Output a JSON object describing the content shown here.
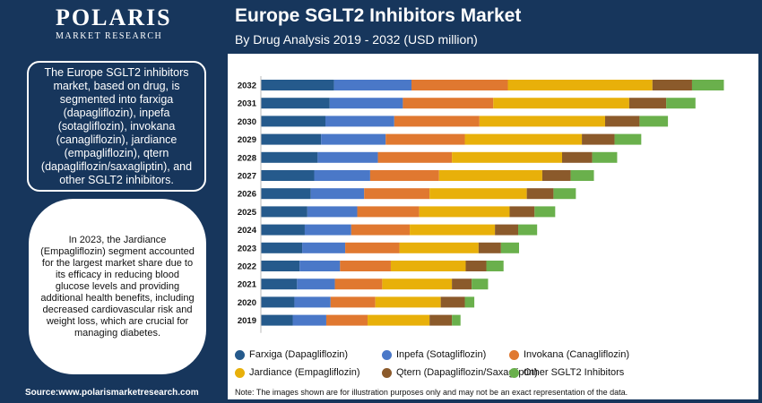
{
  "header": {
    "logo_brand": "POLARIS",
    "logo_sub": "MARKET RESEARCH",
    "title": "Europe SGLT2 Inhibitors Market",
    "subtitle": "By Drug Analysis 2019 - 2032 (USD million)"
  },
  "summary": "The Europe SGLT2 inhibitors market, based on drug, is segmented into farxiga (dapagliflozin), inpefa (sotagliflozin), invokana (canagliflozin), jardiance (empagliflozin), qtern (dapagliflozin/saxagliptin), and other SGLT2 inhibitors.",
  "highlight": "In 2023, the Jardiance (Empagliflozin) segment accounted for the largest market share due to its efficacy in reducing blood glucose levels and providing additional health benefits, including decreased cardiovascular risk and weight loss, which are crucial for managing diabetes.",
  "source": "Source:www.polarismarketresearch.com",
  "note": "Note: The images shown are for illustration purposes only and may not be an exact representation of the data.",
  "chart_data": {
    "type": "bar",
    "orientation": "horizontal",
    "stacked": true,
    "categories": [
      "2032",
      "2031",
      "2030",
      "2029",
      "2028",
      "2027",
      "2026",
      "2025",
      "2024",
      "2023",
      "2022",
      "2021",
      "2020",
      "2019"
    ],
    "series": [
      {
        "name": "Farxiga (Dapagliflozin)",
        "color": "#255a8c",
        "values": [
          85,
          80,
          75,
          70,
          66,
          62,
          58,
          54,
          51,
          48,
          45,
          42,
          39,
          37
        ]
      },
      {
        "name": "Inpefa (Sotagliflozin)",
        "color": "#4a78c8",
        "values": [
          90,
          85,
          80,
          75,
          70,
          65,
          62,
          58,
          54,
          50,
          47,
          44,
          42,
          39
        ]
      },
      {
        "name": "Invokana (Canagliflozin)",
        "color": "#e07830",
        "values": [
          112,
          105,
          99,
          92,
          86,
          80,
          76,
          72,
          68,
          63,
          59,
          55,
          52,
          48
        ]
      },
      {
        "name": "Jardiance (Empagliflozin)",
        "color": "#e8b00a",
        "values": [
          168,
          158,
          146,
          136,
          128,
          120,
          113,
          105,
          99,
          92,
          87,
          81,
          76,
          72
        ]
      },
      {
        "name": "Qtern (Dapagliflozin/Saxagliptin)",
        "color": "#8b5a2b",
        "values": [
          46,
          43,
          40,
          38,
          35,
          33,
          31,
          29,
          27,
          26,
          24,
          23,
          28,
          26
        ]
      },
      {
        "name": "Other SGLT2 Inhibitors",
        "color": "#6ab04c",
        "values": [
          37,
          34,
          33,
          31,
          29,
          27,
          26,
          24,
          22,
          21,
          20,
          19,
          11,
          10
        ]
      }
    ]
  }
}
